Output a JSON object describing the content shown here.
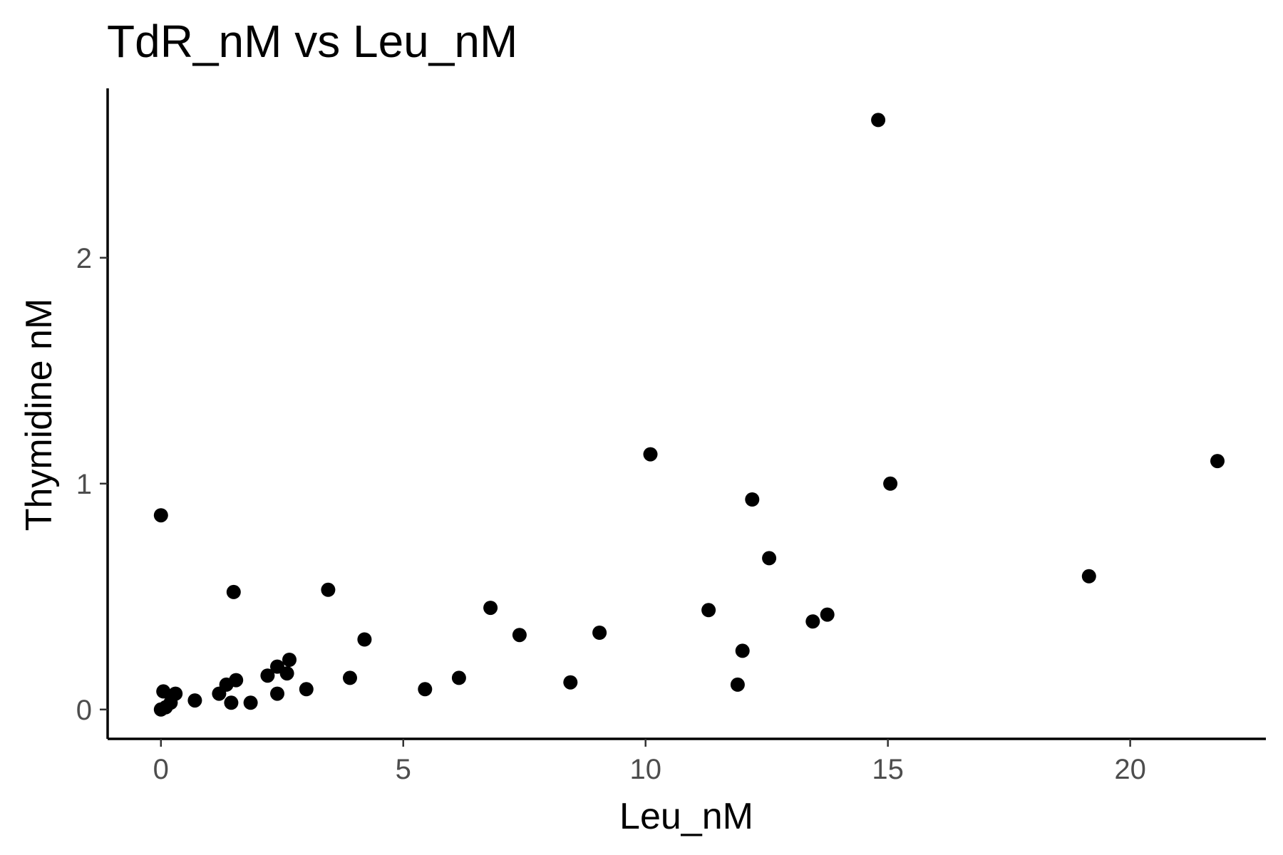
{
  "chart_data": {
    "type": "scatter",
    "title": "TdR_nM vs Leu_nM",
    "xlabel": "Leu_nM",
    "ylabel": "Thymidine nM",
    "xlim": [
      -1.1,
      22.8
    ],
    "ylim": [
      -0.13,
      2.75
    ],
    "xticks": [
      0,
      5,
      10,
      15,
      20
    ],
    "yticks": [
      0,
      1,
      2
    ],
    "grid": false,
    "legend": "none",
    "point_color": "#000000",
    "points": [
      {
        "x": 0.0,
        "y": 0.86
      },
      {
        "x": 0.0,
        "y": 0.0
      },
      {
        "x": 0.05,
        "y": 0.08
      },
      {
        "x": 0.1,
        "y": 0.01
      },
      {
        "x": 0.2,
        "y": 0.03
      },
      {
        "x": 0.3,
        "y": 0.07
      },
      {
        "x": 0.7,
        "y": 0.04
      },
      {
        "x": 1.2,
        "y": 0.07
      },
      {
        "x": 1.35,
        "y": 0.11
      },
      {
        "x": 1.45,
        "y": 0.03
      },
      {
        "x": 1.5,
        "y": 0.52
      },
      {
        "x": 1.55,
        "y": 0.13
      },
      {
        "x": 1.85,
        "y": 0.03
      },
      {
        "x": 2.2,
        "y": 0.15
      },
      {
        "x": 2.4,
        "y": 0.19
      },
      {
        "x": 2.4,
        "y": 0.07
      },
      {
        "x": 2.6,
        "y": 0.16
      },
      {
        "x": 2.65,
        "y": 0.22
      },
      {
        "x": 3.0,
        "y": 0.09
      },
      {
        "x": 3.45,
        "y": 0.53
      },
      {
        "x": 3.9,
        "y": 0.14
      },
      {
        "x": 4.2,
        "y": 0.31
      },
      {
        "x": 5.45,
        "y": 0.09
      },
      {
        "x": 6.15,
        "y": 0.14
      },
      {
        "x": 6.8,
        "y": 0.45
      },
      {
        "x": 7.4,
        "y": 0.33
      },
      {
        "x": 8.45,
        "y": 0.12
      },
      {
        "x": 9.05,
        "y": 0.34
      },
      {
        "x": 10.1,
        "y": 1.13
      },
      {
        "x": 11.3,
        "y": 0.44
      },
      {
        "x": 11.9,
        "y": 0.11
      },
      {
        "x": 12.0,
        "y": 0.26
      },
      {
        "x": 12.2,
        "y": 0.93
      },
      {
        "x": 12.55,
        "y": 0.67
      },
      {
        "x": 13.45,
        "y": 0.39
      },
      {
        "x": 13.75,
        "y": 0.42
      },
      {
        "x": 14.8,
        "y": 2.61
      },
      {
        "x": 15.05,
        "y": 1.0
      },
      {
        "x": 19.15,
        "y": 0.59
      },
      {
        "x": 21.8,
        "y": 1.1
      }
    ]
  }
}
